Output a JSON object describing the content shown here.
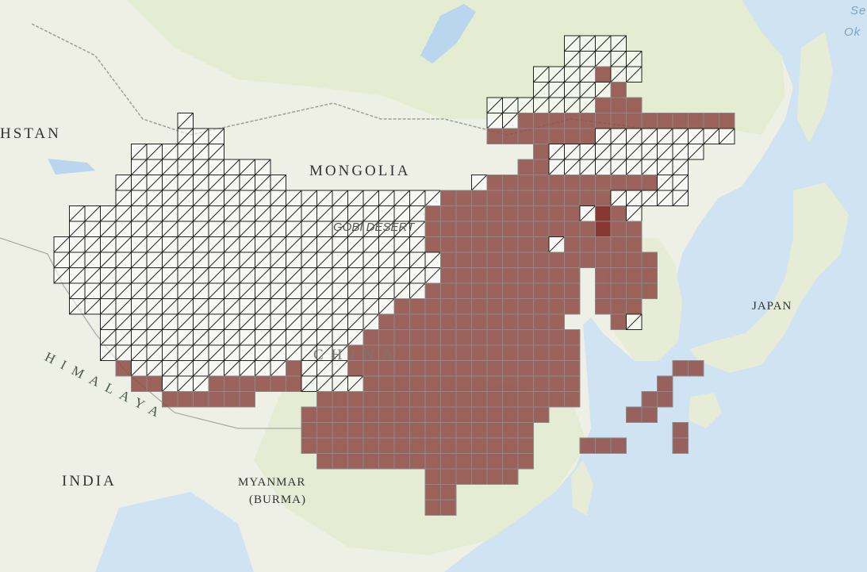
{
  "map": {
    "labels": {
      "kazakhstan": "HSTAN",
      "mongolia": "MONGOLIA",
      "gobi_desert": "GOBI DESERT",
      "china": "CHINA",
      "japan": "JAPAN",
      "india": "INDIA",
      "myanmar_line1": "MYANMAR",
      "myanmar_line2": "(BURMA)",
      "himalaya": "HIMALAYA",
      "sea_line1": "Se",
      "sea_line2": "Ok"
    },
    "grid_legend": {
      "hatched": "no-data cell (outline with diagonal hatching)",
      "filled": "data cell (brown fill)",
      "highlight": "high-value cell (dark red)"
    },
    "colors": {
      "sea": "#cfe3f3",
      "land": "#eef0e6",
      "vegetation": "#dfe9c8",
      "filled_cell": "#8f4f48",
      "highlight_cell": "#7a1c18",
      "cell_border": "#8a8a8a",
      "hatch": "#222222"
    }
  }
}
